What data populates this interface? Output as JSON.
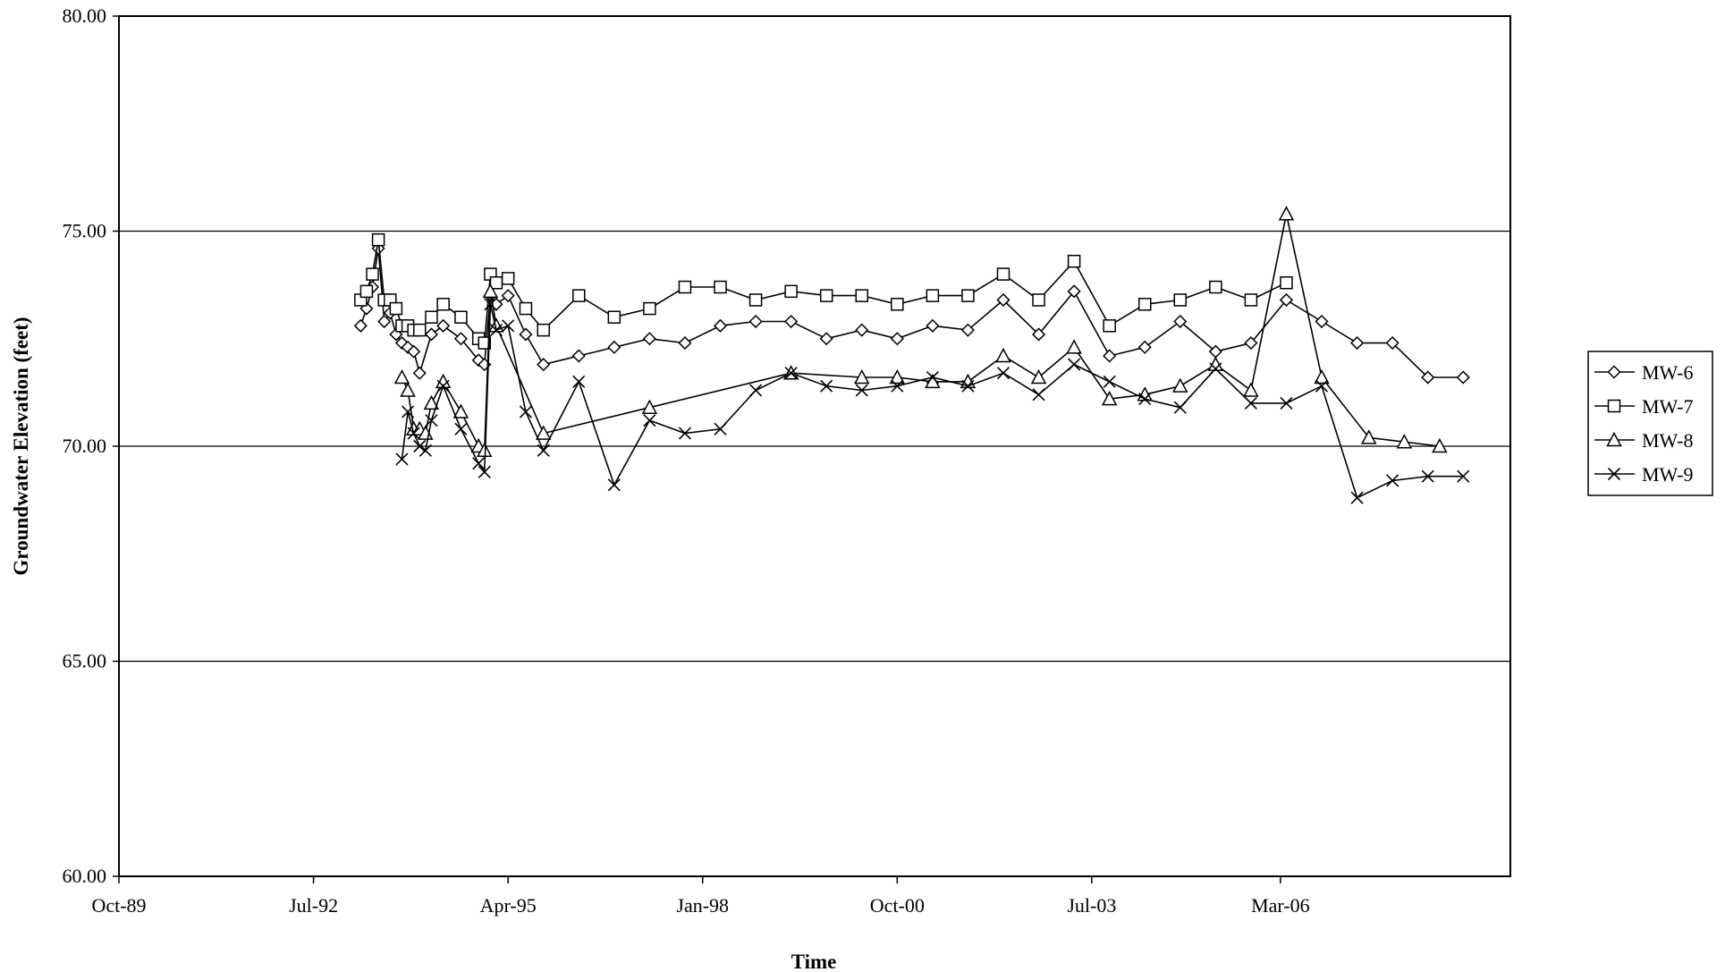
{
  "chart_data": {
    "type": "line",
    "title": "",
    "xlabel": "Time",
    "ylabel": "Groundwater Elevation (feet)",
    "ylim": [
      60,
      80
    ],
    "y_ticks": [
      60,
      65,
      70,
      75,
      80
    ],
    "y_tick_labels": [
      "60.00",
      "65.00",
      "70.00",
      "75.00",
      "80.00"
    ],
    "xlim": [
      "1989-10",
      "2009-06"
    ],
    "x_ticks": [
      "1989-10",
      "1992-07",
      "1995-04",
      "1998-01",
      "2000-10",
      "2003-07",
      "2006-03"
    ],
    "x_tick_labels": [
      "Oct-89",
      "Jul-92",
      "Apr-95",
      "Jan-98",
      "Oct-00",
      "Jul-03",
      "Mar-06"
    ],
    "grid": "horizontal",
    "legend_position": "right",
    "series": [
      {
        "name": "MW-6",
        "marker": "diamond",
        "x": [
          "1993-03",
          "1993-04",
          "1993-05",
          "1993-06",
          "1993-07",
          "1993-08",
          "1993-09",
          "1993-10",
          "1993-11",
          "1993-12",
          "1994-01",
          "1994-03",
          "1994-05",
          "1994-08",
          "1994-11",
          "1994-12",
          "1995-01",
          "1995-02",
          "1995-04",
          "1995-07",
          "1995-10",
          "1996-04",
          "1996-10",
          "1997-04",
          "1997-10",
          "1998-04",
          "1998-10",
          "1999-04",
          "1999-10",
          "2000-04",
          "2000-10",
          "2001-04",
          "2001-10",
          "2002-04",
          "2002-10",
          "2003-04",
          "2003-10",
          "2004-04",
          "2004-10",
          "2005-04",
          "2005-10",
          "2006-04",
          "2006-10",
          "2007-04",
          "2007-10",
          "2008-04",
          "2008-10"
        ],
        "values": [
          72.8,
          73.2,
          73.7,
          74.6,
          72.9,
          73.1,
          72.6,
          72.4,
          72.3,
          72.2,
          71.7,
          72.6,
          72.8,
          72.5,
          72.0,
          71.9,
          73.5,
          73.3,
          73.5,
          72.6,
          71.9,
          72.1,
          72.3,
          72.5,
          72.4,
          72.8,
          72.9,
          72.9,
          72.5,
          72.7,
          72.5,
          72.8,
          72.7,
          73.4,
          72.6,
          73.6,
          72.1,
          72.3,
          72.9,
          72.2,
          72.4,
          73.4,
          72.9,
          72.4,
          72.4,
          71.6,
          71.6
        ]
      },
      {
        "name": "MW-7",
        "marker": "square",
        "x": [
          "1993-03",
          "1993-04",
          "1993-05",
          "1993-06",
          "1993-07",
          "1993-08",
          "1993-09",
          "1993-10",
          "1993-11",
          "1993-12",
          "1994-01",
          "1994-03",
          "1994-05",
          "1994-08",
          "1994-11",
          "1994-12",
          "1995-01",
          "1995-02",
          "1995-04",
          "1995-07",
          "1995-10",
          "1996-04",
          "1996-10",
          "1997-04",
          "1997-10",
          "1998-04",
          "1998-10",
          "1999-04",
          "1999-10",
          "2000-04",
          "2000-10",
          "2001-04",
          "2001-10",
          "2002-04",
          "2002-10",
          "2003-04",
          "2003-10",
          "2004-04",
          "2004-10",
          "2005-04",
          "2005-10",
          "2006-04"
        ],
        "values": [
          73.4,
          73.6,
          74.0,
          74.8,
          73.4,
          73.4,
          73.2,
          72.8,
          72.8,
          72.7,
          72.7,
          73.0,
          73.3,
          73.0,
          72.5,
          72.4,
          74.0,
          73.8,
          73.9,
          73.2,
          72.7,
          73.5,
          73.0,
          73.2,
          73.7,
          73.7,
          73.4,
          73.6,
          73.5,
          73.5,
          73.3,
          73.5,
          73.5,
          74.0,
          73.4,
          74.3,
          72.8,
          73.3,
          73.4,
          73.7,
          73.4,
          73.8
        ]
      },
      {
        "name": "MW-8",
        "marker": "triangle",
        "x": [
          "1993-10",
          "1993-11",
          "1993-12",
          "1994-01",
          "1994-02",
          "1994-03",
          "1994-05",
          "1994-08",
          "1994-11",
          "1994-12",
          "1995-01",
          "1995-02",
          "1995-10",
          "1997-04",
          "1999-04",
          "2000-04",
          "2000-10",
          "2001-04",
          "2001-10",
          "2002-04",
          "2002-10",
          "2003-04",
          "2003-10",
          "2004-04",
          "2004-10",
          "2005-04",
          "2005-10",
          "2006-04",
          "2006-10",
          "2007-06",
          "2007-12",
          "2008-06"
        ],
        "values": [
          71.6,
          71.3,
          70.4,
          70.4,
          70.3,
          71.0,
          71.5,
          70.8,
          70.0,
          69.9,
          73.6,
          72.8,
          70.3,
          70.9,
          71.7,
          71.6,
          71.6,
          71.5,
          71.5,
          72.1,
          71.6,
          72.3,
          71.1,
          71.2,
          71.4,
          71.9,
          71.3,
          75.4,
          71.6,
          70.2,
          70.1,
          70.0
        ]
      },
      {
        "name": "MW-9",
        "marker": "x",
        "x": [
          "1993-10",
          "1993-11",
          "1993-12",
          "1994-01",
          "1994-02",
          "1994-03",
          "1994-05",
          "1994-08",
          "1994-11",
          "1994-12",
          "1995-01",
          "1995-02",
          "1995-04",
          "1995-07",
          "1995-10",
          "1996-04",
          "1996-10",
          "1997-04",
          "1997-10",
          "1998-04",
          "1998-10",
          "1999-04",
          "1999-10",
          "2000-04",
          "2000-10",
          "2001-04",
          "2001-10",
          "2002-04",
          "2002-10",
          "2003-04",
          "2003-10",
          "2004-04",
          "2004-10",
          "2005-04",
          "2005-10",
          "2006-04",
          "2006-10",
          "2007-04",
          "2007-10",
          "2008-04",
          "2008-10"
        ],
        "values": [
          69.7,
          70.8,
          70.3,
          70.0,
          69.9,
          70.6,
          71.4,
          70.4,
          69.6,
          69.4,
          73.3,
          72.7,
          72.8,
          70.8,
          69.9,
          71.5,
          69.1,
          70.6,
          70.3,
          70.4,
          71.3,
          71.7,
          71.4,
          71.3,
          71.4,
          71.6,
          71.4,
          71.7,
          71.2,
          71.9,
          71.5,
          71.1,
          70.9,
          71.8,
          71.0,
          71.0,
          71.4,
          68.8,
          69.2,
          69.3,
          69.3
        ]
      }
    ]
  }
}
